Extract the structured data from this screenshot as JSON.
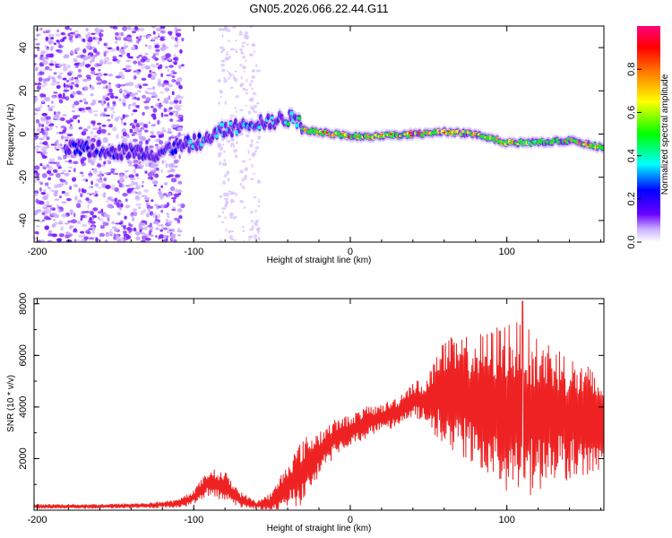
{
  "title": "GN05.2026.066.22.44.G11",
  "chart_data": [
    {
      "type": "heatmap",
      "name": "spectrogram",
      "xlabel": "Height of straight line (km)",
      "ylabel": "Frequency (Hz)",
      "xlim": [
        -202,
        162
      ],
      "ylim": [
        -50,
        50
      ],
      "xticks": [
        -200,
        -100,
        0,
        100
      ],
      "yticks": [
        -40,
        -20,
        0,
        20,
        40
      ],
      "xtick_labels": [
        "-200",
        "-100",
        "0",
        "100"
      ],
      "ytick_labels": [
        "-40",
        "-20",
        "0",
        "20",
        "40"
      ],
      "colorbar": {
        "label": "Normalized spectral amplitude",
        "range": [
          0,
          1
        ],
        "ticks": [
          0.0,
          0.2,
          0.4,
          0.6,
          0.8
        ],
        "tick_labels": [
          "0.0",
          "0.2",
          "0.4",
          "0.6",
          "0.8"
        ],
        "colors": [
          "#ffffff",
          "#b090ff",
          "#6a00ff",
          "#0000ff",
          "#00ffff",
          "#00ff00",
          "#ffff00",
          "#ff8000",
          "#ff0000",
          "#ff0080"
        ]
      },
      "ridge": {
        "x": [
          -175,
          -160,
          -145,
          -125,
          -110,
          -95,
          -80,
          -65,
          -50,
          -35,
          -30,
          -20,
          -10,
          0,
          20,
          40,
          60,
          80,
          100,
          120,
          140,
          160
        ],
        "freq": [
          -7,
          -7,
          -8,
          -9,
          -6,
          -3,
          2,
          5,
          6,
          8,
          2,
          1,
          0,
          -1,
          -1,
          0,
          1,
          0,
          -4,
          -4,
          -3,
          -6
        ],
        "amplitude": [
          0.25,
          0.25,
          0.3,
          0.35,
          0.35,
          0.4,
          0.45,
          0.45,
          0.5,
          0.55,
          0.75,
          0.85,
          0.8,
          0.85,
          0.8,
          0.9,
          0.85,
          0.8,
          0.75,
          0.7,
          0.75,
          0.8
        ]
      }
    },
    {
      "type": "line",
      "name": "snr",
      "xlabel": "Height of straight line (km)",
      "ylabel": "SNR (10 * v/v)",
      "xlim": [
        -202,
        162
      ],
      "ylim": [
        0,
        8200
      ],
      "xticks": [
        -200,
        -100,
        0,
        100
      ],
      "yticks": [
        2000,
        4000,
        6000,
        8000
      ],
      "xtick_labels": [
        "-200",
        "-100",
        "0",
        "100"
      ],
      "ytick_labels": [
        "2000",
        "4000",
        "6000",
        "8000"
      ],
      "color": "#ee2222",
      "envelope": {
        "x": [
          -202,
          -160,
          -130,
          -110,
          -100,
          -90,
          -80,
          -70,
          -60,
          -50,
          -40,
          -30,
          -20,
          -10,
          0,
          10,
          20,
          30,
          40,
          50,
          55,
          60,
          70,
          80,
          90,
          100,
          110,
          120,
          130,
          140,
          150,
          162
        ],
        "mid": [
          150,
          150,
          180,
          250,
          500,
          1100,
          900,
          400,
          200,
          300,
          1000,
          1500,
          2200,
          2800,
          3100,
          3400,
          3600,
          3800,
          4300,
          4200,
          4600,
          4500,
          4400,
          4300,
          4000,
          4000,
          3800,
          3700,
          3800,
          3600,
          3500,
          3400
        ],
        "amp": [
          80,
          80,
          100,
          150,
          300,
          500,
          600,
          300,
          150,
          400,
          900,
          1300,
          900,
          700,
          600,
          600,
          500,
          600,
          700,
          900,
          2000,
          2200,
          2300,
          2500,
          3000,
          3500,
          3400,
          3000,
          2800,
          2400,
          2200,
          1800
        ],
        "peak_x": 110,
        "peak_y": 8100
      }
    }
  ]
}
